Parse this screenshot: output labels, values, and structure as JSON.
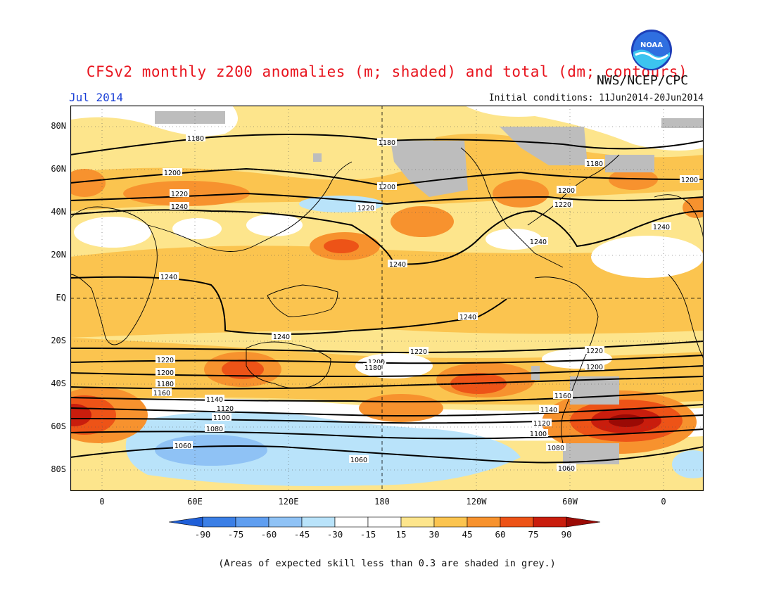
{
  "header": {
    "title": "CFSv2 monthly z200 anomalies (m; shaded) and total (dm; contours)",
    "month": "Jul 2014",
    "initial_conditions": "Initial conditions: 11Jun2014-20Jun2014",
    "agency": "NWS/NCEP/CPC",
    "logo_text": "NOAA"
  },
  "map": {
    "lat_labels": [
      "80N",
      "60N",
      "40N",
      "20N",
      "EQ",
      "20S",
      "40S",
      "60S",
      "80S"
    ],
    "lon_labels": [
      "0",
      "60E",
      "120E",
      "180",
      "120W",
      "60W",
      "0"
    ],
    "colors": {
      "-90": "#1f5fd8",
      "-75": "#3b7fe6",
      "-60": "#5f9ef0",
      "-45": "#8fc2f5",
      "-30": "#b9e3fa",
      "-15": "#ffffff",
      "15": "#fde58c",
      "30": "#fbc44f",
      "45": "#f7922e",
      "60": "#ed5317",
      "75": "#c91d0d",
      "90": "#9b0a05",
      "grey": "#bdbdbd",
      "contour": "#000000",
      "coast": "#000000"
    }
  },
  "contours": {
    "labels": [
      "1180",
      "1180",
      "1180",
      "1200",
      "1200",
      "1200",
      "1200",
      "1220",
      "1220",
      "1220",
      "1240",
      "1240",
      "1240",
      "1240",
      "1240",
      "1240",
      "1240",
      "1220",
      "1220",
      "1220",
      "1200",
      "1200",
      "1200",
      "1180",
      "1180",
      "1160",
      "1160",
      "1140",
      "1140",
      "1120",
      "1120",
      "1100",
      "1100",
      "1080",
      "1080",
      "1060",
      "1060",
      "1060"
    ]
  },
  "colorbar": {
    "labels": [
      "-90",
      "-75",
      "-60",
      "-45",
      "-30",
      "-15",
      "15",
      "30",
      "45",
      "60",
      "75",
      "90"
    ]
  },
  "footnote": "(Areas of expected skill less than 0.3 are shaded in grey.)"
}
